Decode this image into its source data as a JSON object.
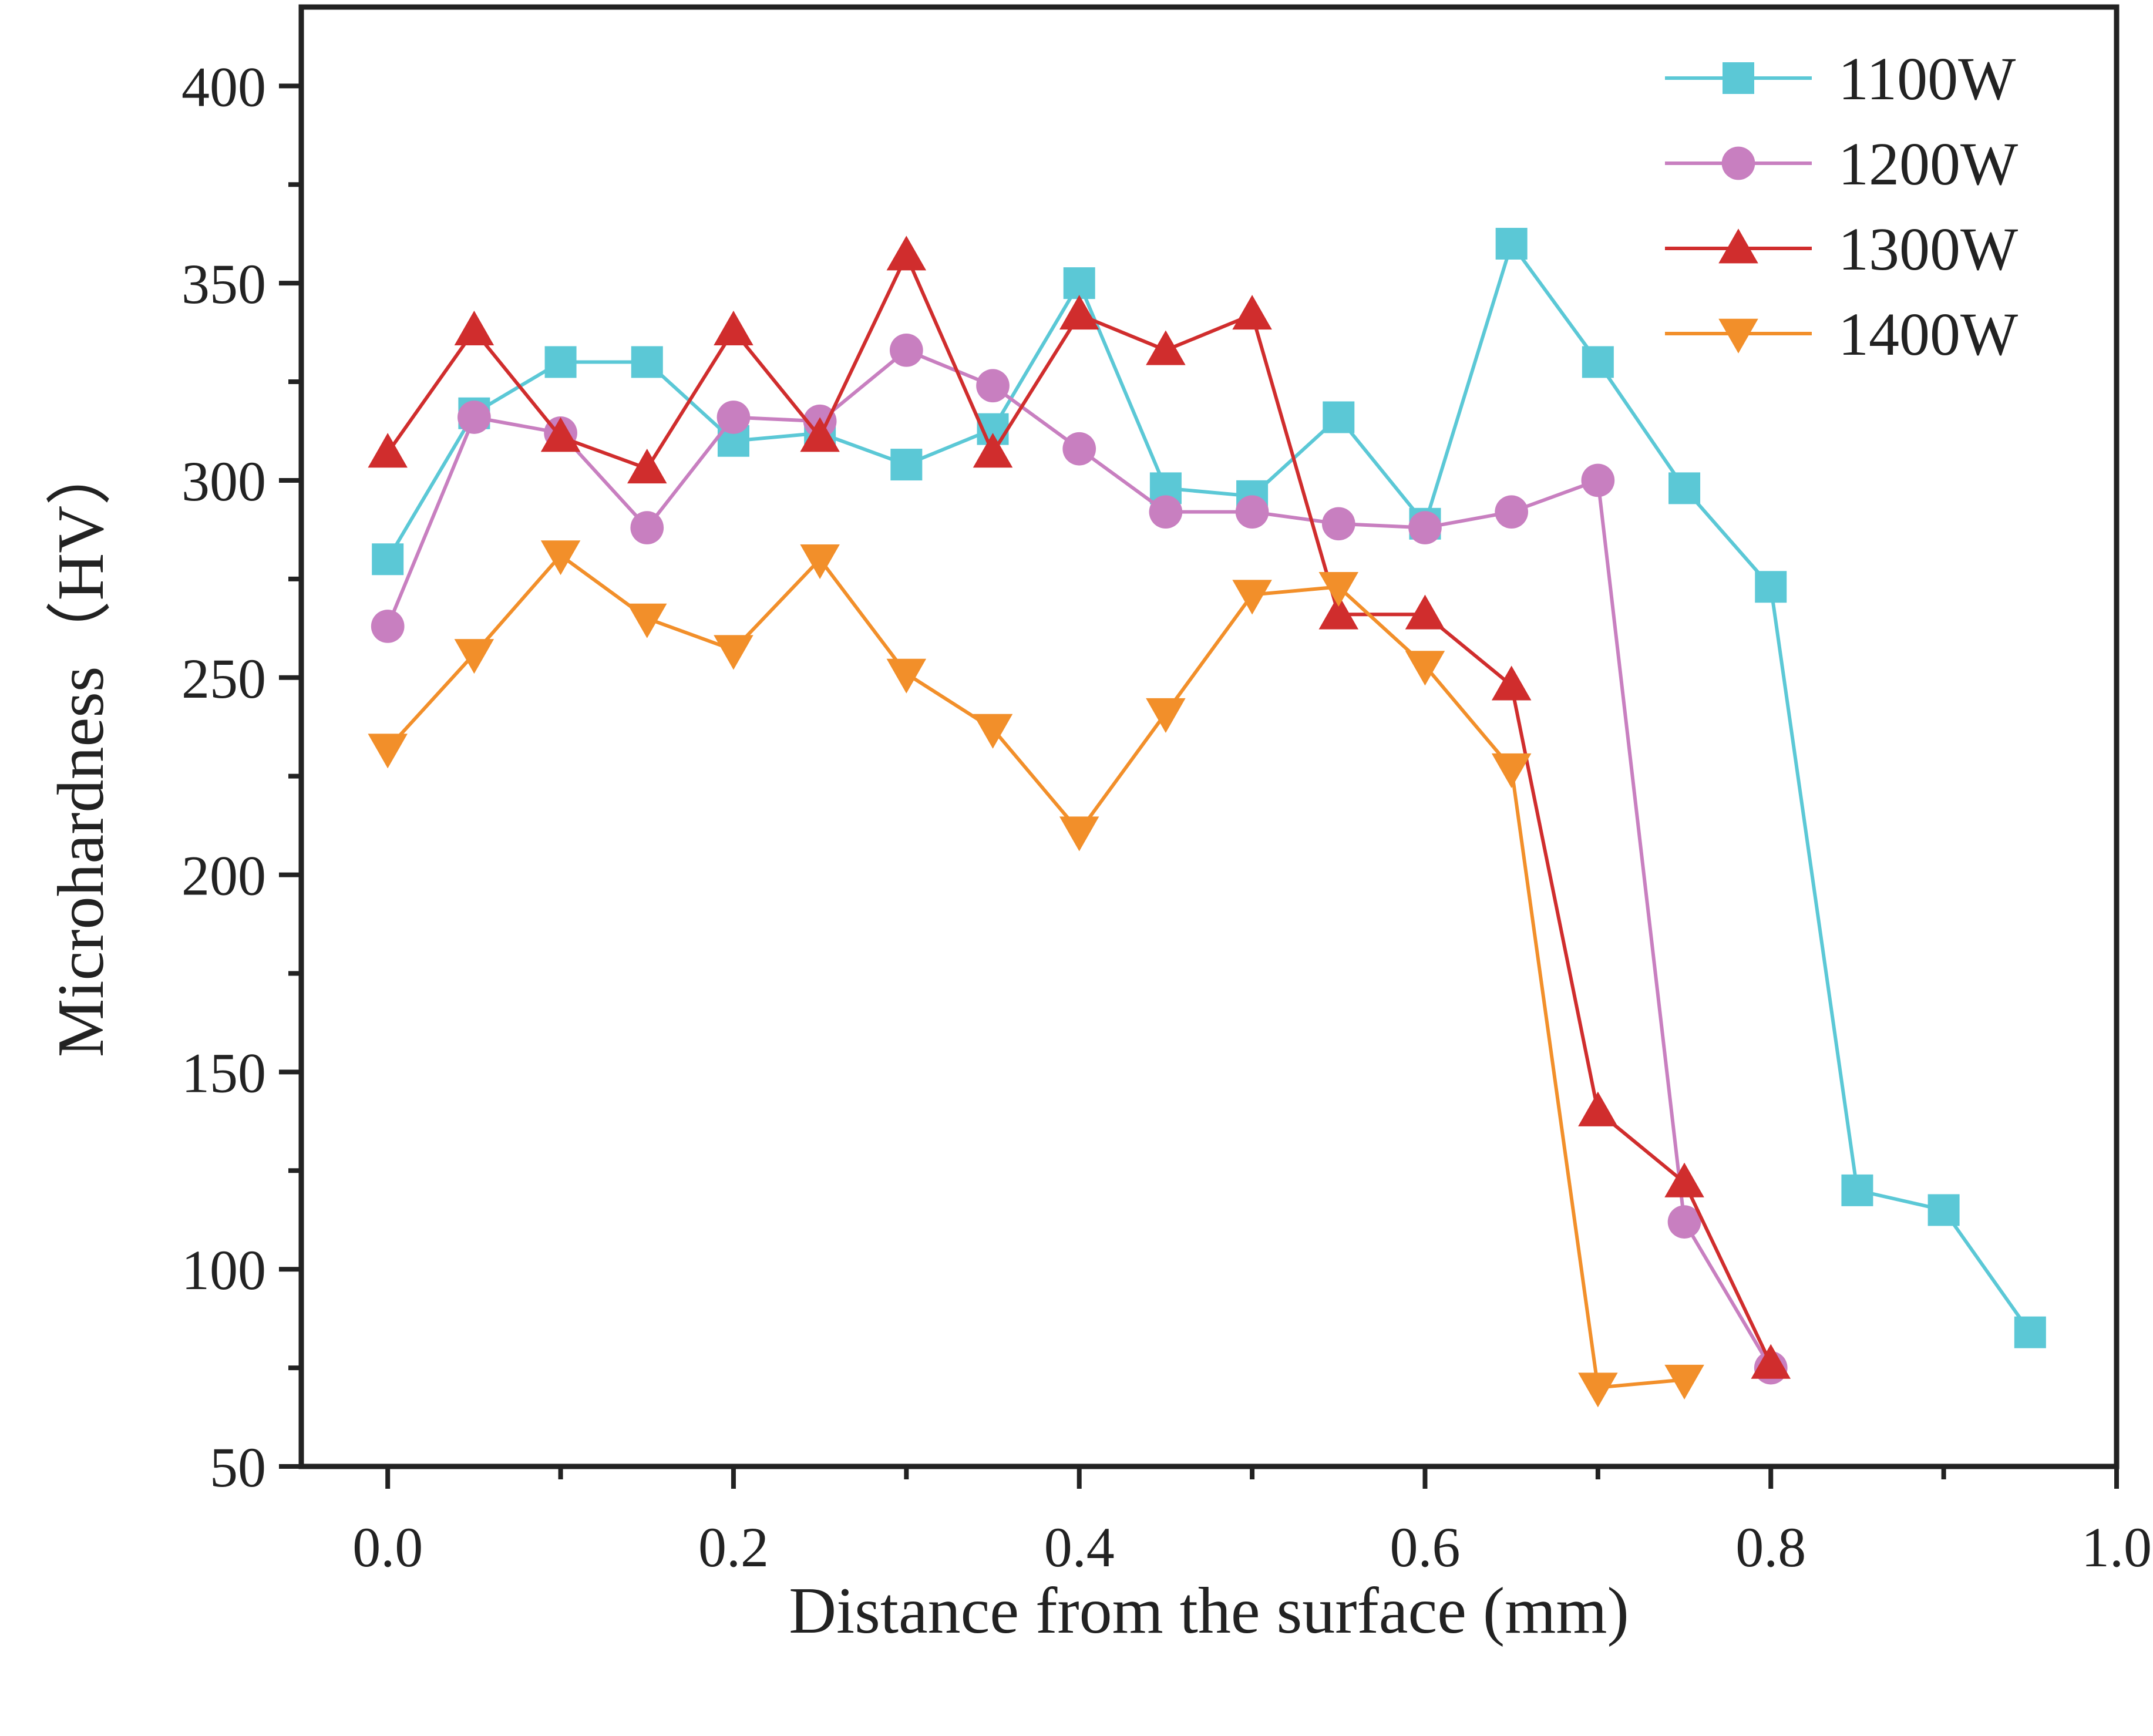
{
  "chart_data": {
    "type": "line",
    "title": "",
    "xlabel": "Distance from the surface (mm)",
    "ylabel": "Microhardness（HV）",
    "xlim": [
      -0.05,
      1.0
    ],
    "ylim": [
      50,
      420
    ],
    "xticks": [
      0.0,
      0.2,
      0.4,
      0.6,
      0.8,
      1.0
    ],
    "xtick_labels": [
      "0.0",
      "0.2",
      "0.4",
      "0.6",
      "0.8",
      "1.0"
    ],
    "yticks": [
      50,
      100,
      150,
      200,
      250,
      300,
      350,
      400
    ],
    "ytick_labels": [
      "50",
      "100",
      "150",
      "200",
      "250",
      "300",
      "350",
      "400"
    ],
    "grid": false,
    "legend_position": "top-right",
    "series": [
      {
        "name": "1100W",
        "color": "#5bc8d6",
        "marker": "square",
        "x": [
          0.0,
          0.05,
          0.1,
          0.15,
          0.2,
          0.25,
          0.3,
          0.35,
          0.4,
          0.45,
          0.5,
          0.55,
          0.6,
          0.65,
          0.7,
          0.75,
          0.8,
          0.85,
          0.9,
          0.95
        ],
        "values": [
          280,
          317,
          330,
          330,
          310,
          312,
          304,
          313,
          350,
          298,
          296,
          316,
          289,
          360,
          330,
          298,
          273,
          120,
          115,
          84
        ]
      },
      {
        "name": "1200W",
        "color": "#c87fc0",
        "marker": "circle",
        "x": [
          0.0,
          0.05,
          0.1,
          0.15,
          0.2,
          0.25,
          0.3,
          0.35,
          0.4,
          0.45,
          0.5,
          0.55,
          0.6,
          0.65,
          0.7,
          0.75,
          0.8
        ],
        "values": [
          263,
          316,
          312,
          288,
          316,
          315,
          333,
          324,
          308,
          292,
          292,
          289,
          288,
          292,
          300,
          112,
          75
        ]
      },
      {
        "name": "1300W",
        "color": "#d02d2d",
        "marker": "triangle-up",
        "x": [
          0.0,
          0.05,
          0.1,
          0.15,
          0.2,
          0.25,
          0.3,
          0.35,
          0.4,
          0.45,
          0.5,
          0.55,
          0.6,
          0.65,
          0.7,
          0.75,
          0.8
        ],
        "values": [
          307,
          338,
          311,
          303,
          338,
          311,
          357,
          307,
          342,
          333,
          342,
          266,
          266,
          248,
          140,
          122,
          76
        ]
      },
      {
        "name": "1400W",
        "color": "#f28f2a",
        "marker": "triangle-down",
        "x": [
          0.0,
          0.05,
          0.1,
          0.15,
          0.2,
          0.25,
          0.3,
          0.35,
          0.4,
          0.45,
          0.5,
          0.55,
          0.6,
          0.65,
          0.7,
          0.75
        ],
        "values": [
          232,
          256,
          281,
          265,
          257,
          280,
          251,
          237,
          211,
          241,
          271,
          273,
          253,
          227,
          70,
          72
        ]
      }
    ]
  }
}
